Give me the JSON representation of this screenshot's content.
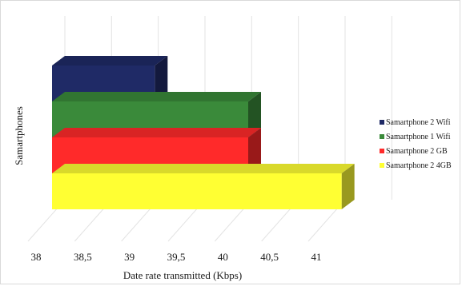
{
  "chart_data": {
    "type": "bar",
    "orientation": "horizontal",
    "three_d": true,
    "stacked": false,
    "xlabel": "Date rate transmitted (Kbps)",
    "ylabel": "Samartphones",
    "xlim": [
      38,
      41.5
    ],
    "x_ticks": [
      "38",
      "38,5",
      "39",
      "39,5",
      "40",
      "40,5",
      "41"
    ],
    "x_tick_values": [
      38,
      38.5,
      39,
      39.5,
      40,
      40.5,
      41
    ],
    "grid": true,
    "legend_position": "right",
    "series": [
      {
        "name": "Samartphone 2 Wifi",
        "value": 39.1,
        "color": "#1f2a66"
      },
      {
        "name": "Samartphone 1 Wifi",
        "value": 40.1,
        "color": "#3a8a3a"
      },
      {
        "name": "Samartphone 2 GB",
        "value": 40.1,
        "color": "#ff2a2a"
      },
      {
        "name": "Samartphone 2 4GB",
        "value": 41.1,
        "color": "#ffff33"
      }
    ]
  }
}
